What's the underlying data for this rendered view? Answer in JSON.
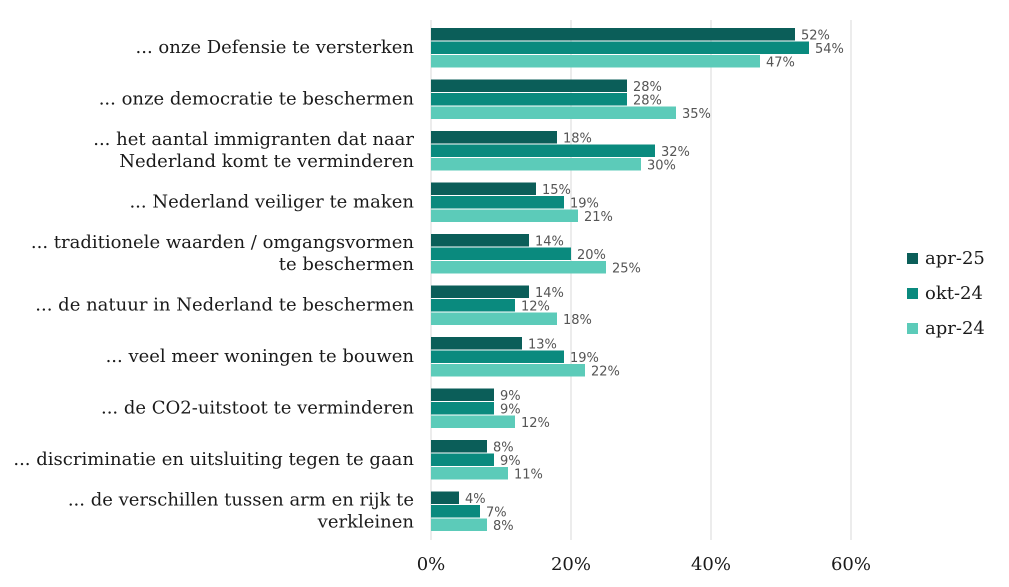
{
  "chart_data": {
    "type": "bar",
    "orientation": "horizontal",
    "categories": [
      [
        "... onze Defensie te versterken"
      ],
      [
        "... onze democratie te beschermen"
      ],
      [
        "... het aantal immigranten dat naar",
        "Nederland komt te verminderen"
      ],
      [
        "... Nederland veiliger te maken"
      ],
      [
        "... traditionele waarden / omgangsvormen",
        "te beschermen"
      ],
      [
        "... de natuur in Nederland te beschermen"
      ],
      [
        "... veel meer woningen te bouwen"
      ],
      [
        "... de CO2-uitstoot te verminderen"
      ],
      [
        "... discriminatie en uitsluiting tegen te gaan"
      ],
      [
        "... de verschillen tussen arm en rijk te",
        "verkleinen"
      ]
    ],
    "series": [
      {
        "name": "apr-25",
        "color": "#0b5e59",
        "values": [
          52,
          28,
          18,
          15,
          14,
          14,
          13,
          9,
          8,
          4
        ]
      },
      {
        "name": "okt-24",
        "color": "#0a8a7e",
        "values": [
          54,
          28,
          32,
          19,
          20,
          12,
          19,
          9,
          9,
          7
        ]
      },
      {
        "name": "apr-24",
        "color": "#5ccbb9",
        "values": [
          47,
          35,
          30,
          21,
          25,
          18,
          22,
          12,
          11,
          8
        ]
      }
    ],
    "xlim": [
      0,
      60
    ],
    "xticks": [
      0,
      20,
      40,
      60
    ],
    "tick_format": "%",
    "value_suffix": "%",
    "grid": true,
    "legend_position": "right"
  }
}
